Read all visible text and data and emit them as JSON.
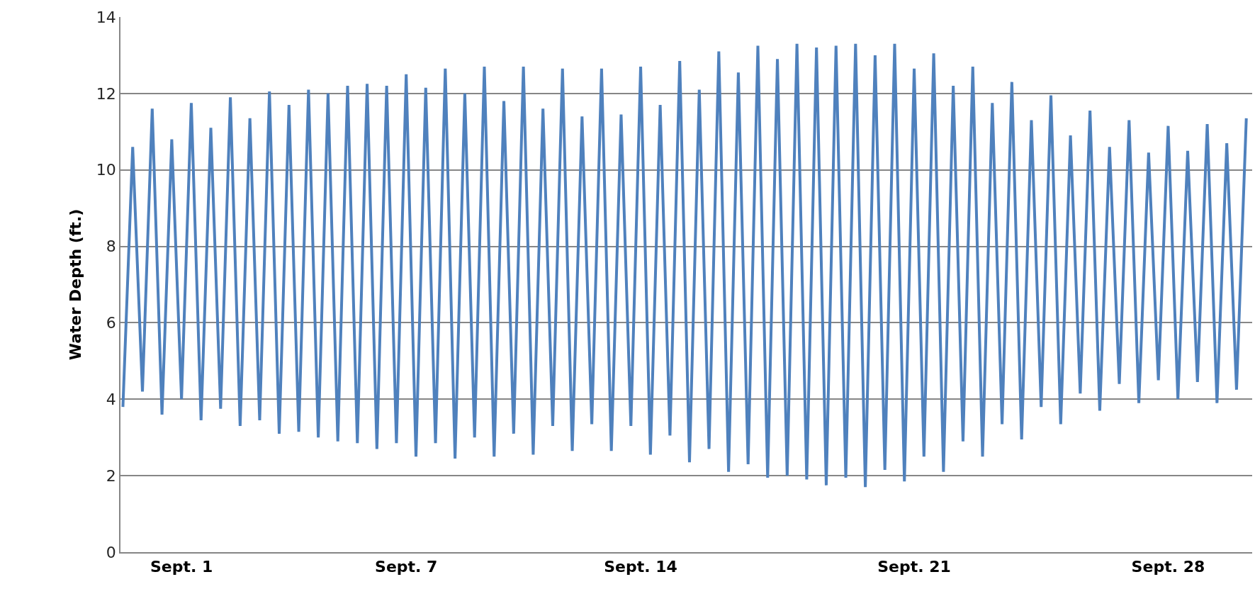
{
  "chart_data": {
    "type": "line",
    "ylabel": "Water Depth (ft.)",
    "categories": [
      null,
      null,
      null,
      null,
      null,
      null,
      "Sept. 1",
      null,
      null,
      null,
      null,
      null,
      null,
      null,
      null,
      null,
      null,
      null,
      null,
      null,
      null,
      null,
      null,
      null,
      null,
      null,
      null,
      null,
      null,
      "Sept. 7",
      null,
      null,
      null,
      null,
      null,
      null,
      null,
      null,
      null,
      null,
      null,
      null,
      null,
      null,
      null,
      null,
      null,
      null,
      null,
      null,
      null,
      null,
      null,
      "Sept. 14",
      null,
      null,
      null,
      null,
      null,
      null,
      null,
      null,
      null,
      null,
      null,
      null,
      null,
      null,
      null,
      null,
      null,
      null,
      null,
      null,
      null,
      null,
      null,
      null,
      null,
      null,
      null,
      "Sept. 21",
      null,
      null,
      null,
      null,
      null,
      null,
      null,
      null,
      null,
      null,
      null,
      null,
      null,
      null,
      null,
      null,
      null,
      null,
      null,
      null,
      null,
      null,
      null,
      null,
      null,
      "Sept. 28",
      null,
      null,
      null,
      null,
      null,
      null,
      null,
      null
    ],
    "series": [
      {
        "color": "#4f81bd",
        "values": [
          3.8,
          10.6,
          4.2,
          11.6,
          3.6,
          10.8,
          4.0,
          11.75,
          3.45,
          11.1,
          3.75,
          11.9,
          3.3,
          11.35,
          3.45,
          12.05,
          3.1,
          11.7,
          3.15,
          12.1,
          3.0,
          12.0,
          2.9,
          12.2,
          2.85,
          12.25,
          2.7,
          12.2,
          2.85,
          12.5,
          2.5,
          12.15,
          2.85,
          12.65,
          2.45,
          12.0,
          3.0,
          12.7,
          2.5,
          11.8,
          3.1,
          12.7,
          2.55,
          11.6,
          3.3,
          12.65,
          2.65,
          11.4,
          3.35,
          12.65,
          2.65,
          11.45,
          3.3,
          12.7,
          2.55,
          11.7,
          3.05,
          12.85,
          2.35,
          12.1,
          2.7,
          13.1,
          2.1,
          12.55,
          2.3,
          13.25,
          1.95,
          12.9,
          2.0,
          13.3,
          1.9,
          13.2,
          1.75,
          13.25,
          1.95,
          13.3,
          1.7,
          13.0,
          2.15,
          13.3,
          1.85,
          12.65,
          2.5,
          13.05,
          2.1,
          12.2,
          2.9,
          12.7,
          2.5,
          11.75,
          3.35,
          12.3,
          2.95,
          11.3,
          3.8,
          11.95,
          3.35,
          10.9,
          4.15,
          11.55,
          3.7,
          10.6,
          4.4,
          11.3,
          3.9,
          10.45,
          4.5,
          11.15,
          4.0,
          10.5,
          4.45,
          11.2,
          3.9,
          10.7,
          4.25,
          11.35
        ]
      }
    ],
    "ylim": [
      0,
      14
    ],
    "yticks": [
      0,
      2,
      4,
      6,
      8,
      10,
      12,
      14
    ],
    "grid": "y",
    "marker": "none",
    "line_style": "solid"
  }
}
